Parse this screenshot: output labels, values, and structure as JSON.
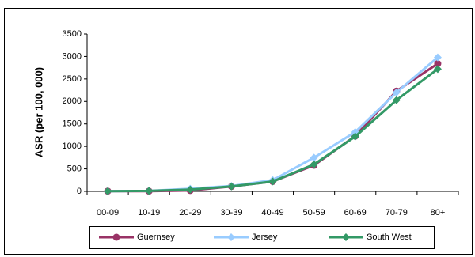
{
  "chart_data": {
    "type": "line",
    "y_label": "ASR (per 100, 000)",
    "categories": [
      "00-09",
      "10-19",
      "20-29",
      "30-39",
      "40-49",
      "50-59",
      "60-69",
      "70-79",
      "80+"
    ],
    "series": [
      {
        "name": "Guernsey",
        "color": "#993366",
        "marker": "circle",
        "values": [
          5,
          5,
          20,
          110,
          220,
          580,
          1230,
          2230,
          2840
        ]
      },
      {
        "name": "Jersey",
        "color": "#99ccff",
        "marker": "diamond",
        "values": [
          5,
          10,
          60,
          120,
          250,
          750,
          1320,
          2200,
          2980
        ]
      },
      {
        "name": "South West",
        "color": "#339966",
        "marker": "diamond",
        "values": [
          5,
          10,
          40,
          110,
          220,
          600,
          1220,
          2030,
          2720
        ]
      }
    ],
    "ylim": [
      0,
      3500
    ],
    "yticks": [
      0,
      500,
      1000,
      1500,
      2000,
      2500,
      3000,
      3500
    ],
    "grid": false,
    "legend": "bottom"
  }
}
